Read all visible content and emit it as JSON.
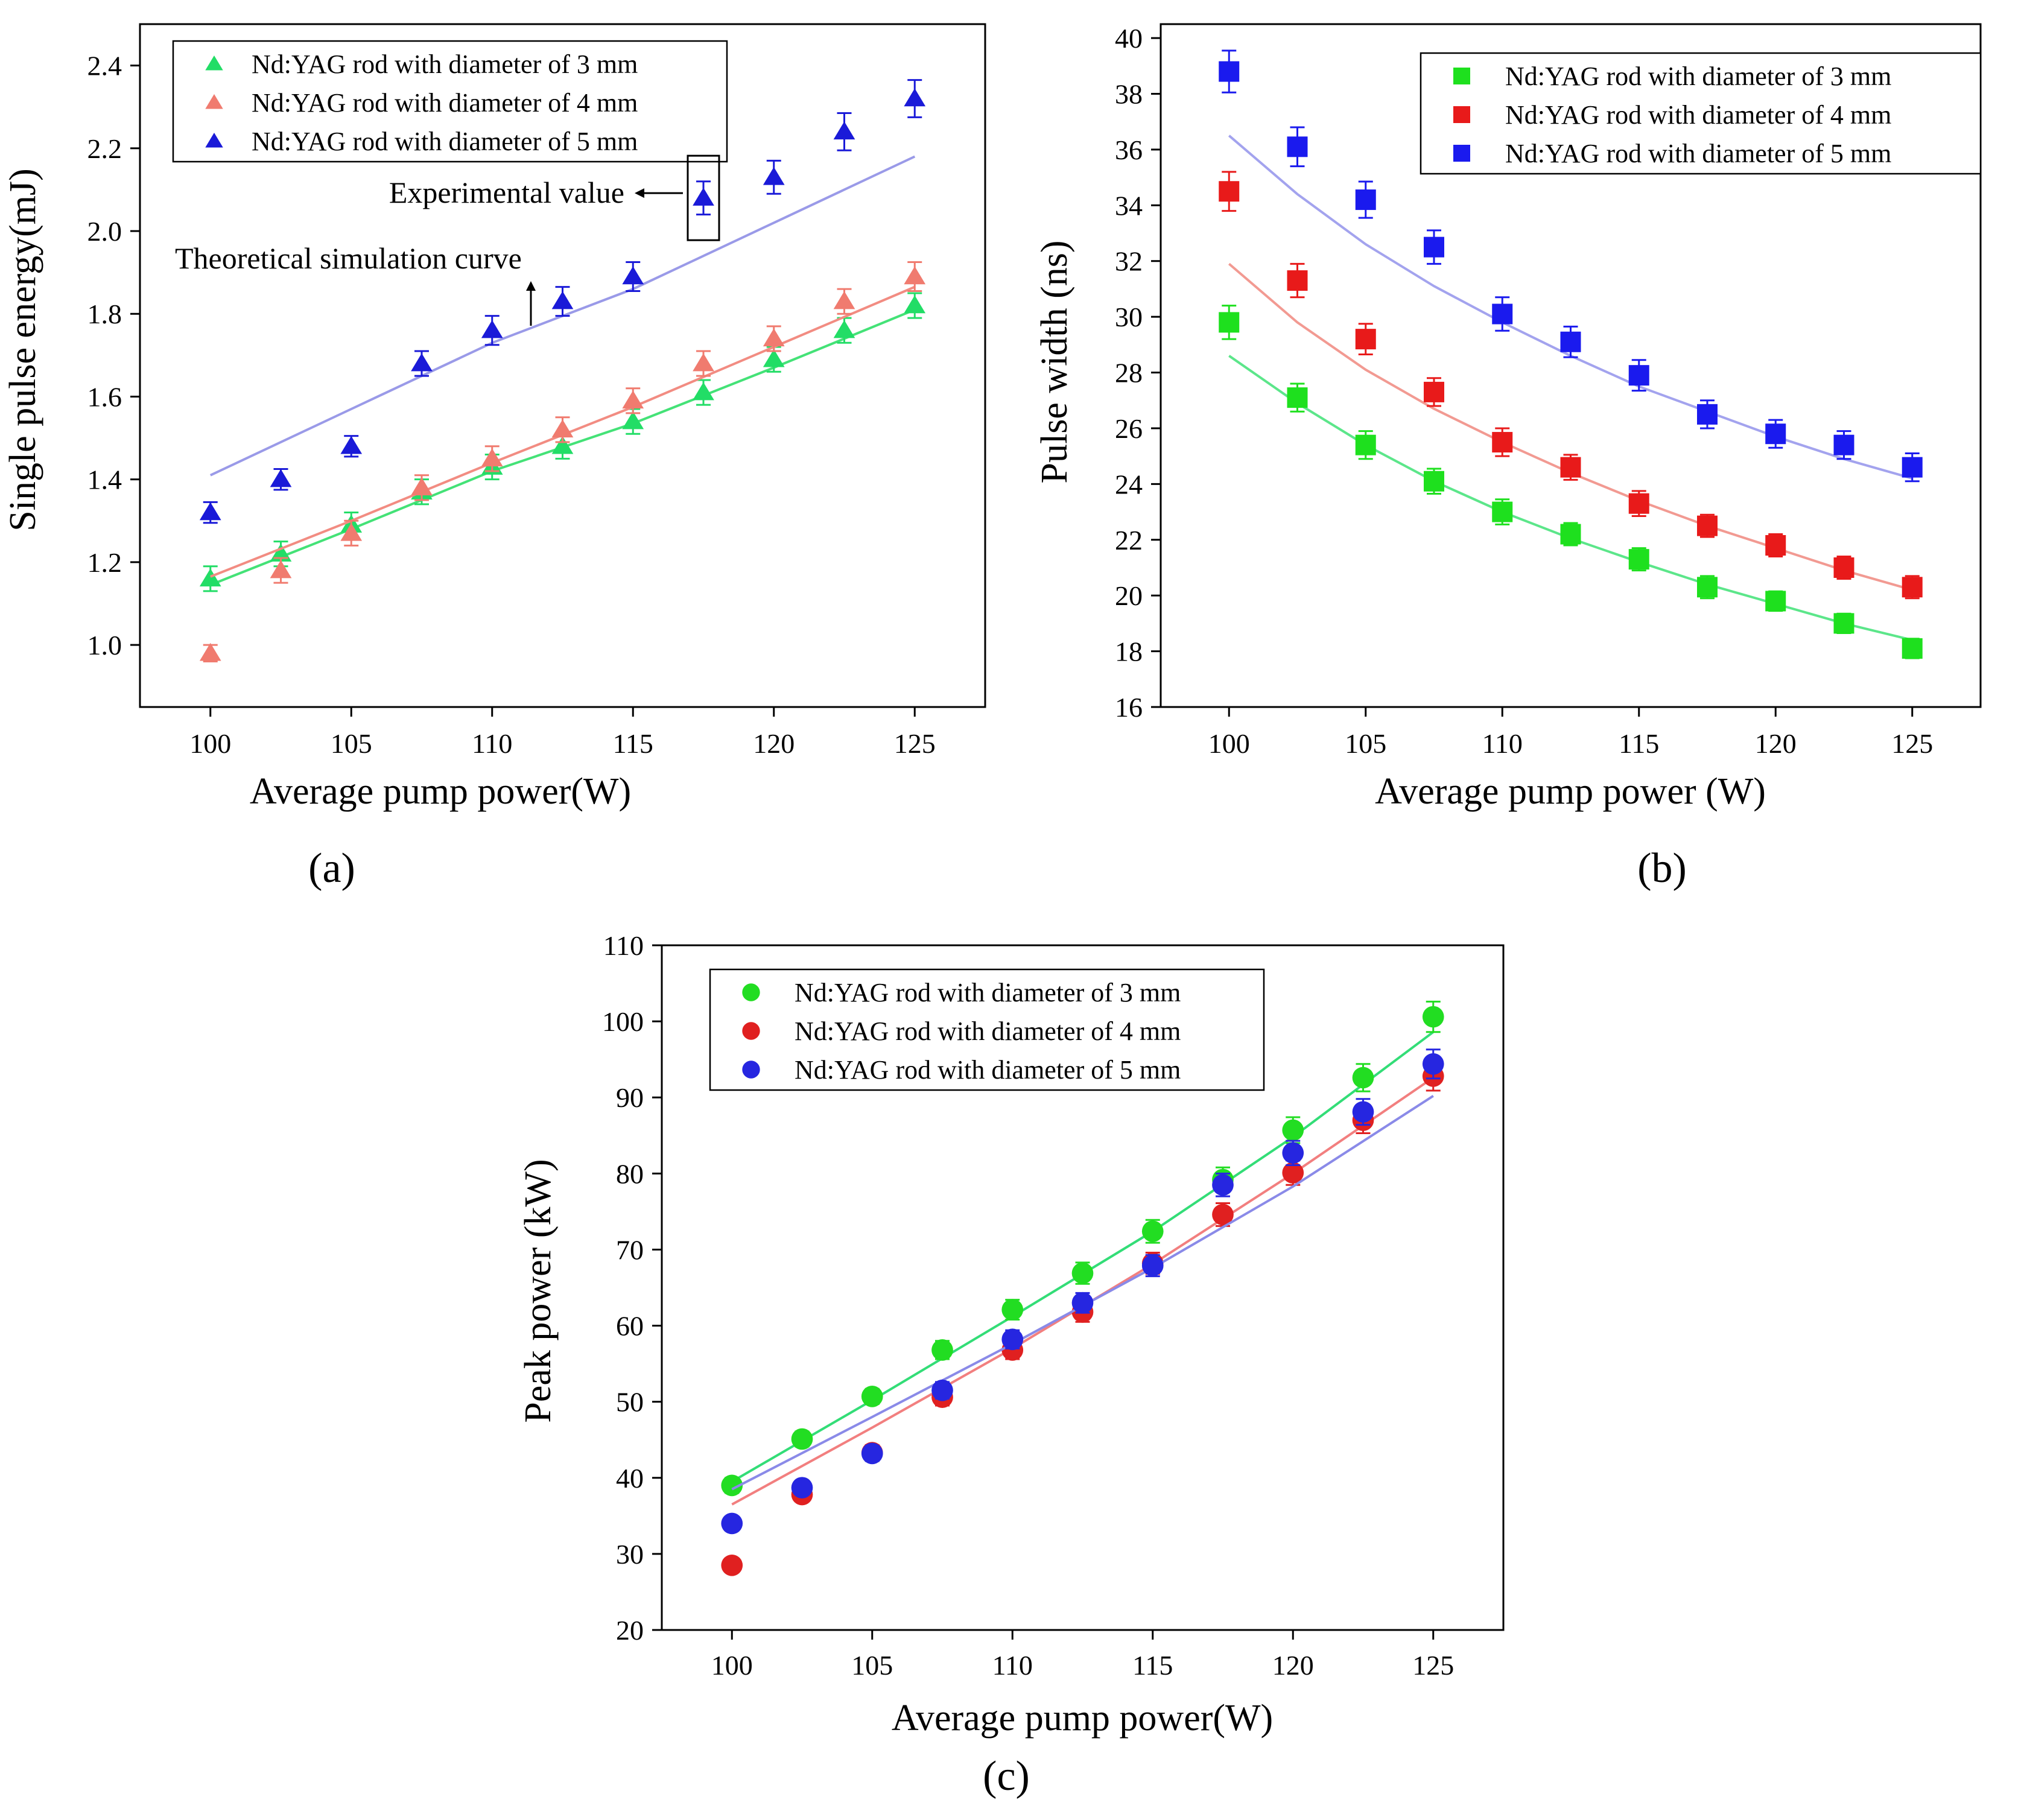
{
  "chart_data": [
    {
      "id": "a",
      "panel_label": "(a)",
      "type": "scatter",
      "marker": "triangle",
      "xlabel": "Average pump power(W)",
      "ylabel": "Single pulse energy(mJ)",
      "xlim": [
        97.5,
        127.5
      ],
      "ylim": [
        0.85,
        2.5
      ],
      "xticks": [
        100,
        105,
        110,
        115,
        120,
        125
      ],
      "yticks": [
        1.0,
        1.2,
        1.4,
        1.6,
        1.8,
        2.0,
        2.2,
        2.4
      ],
      "y_decimals": 1,
      "legend_position": "top-left",
      "annotations": {
        "experimental": "Experimental value",
        "theoretical": "Theoretical simulation curve"
      },
      "series": [
        {
          "name": "Nd:YAG rod with diameter of 3 mm",
          "color": "#22dd66",
          "line_color": "#44e277",
          "x": [
            100,
            102.5,
            105,
            107.5,
            110,
            112.5,
            115,
            117.5,
            120,
            122.5,
            125
          ],
          "y": [
            1.16,
            1.22,
            1.29,
            1.37,
            1.43,
            1.48,
            1.54,
            1.61,
            1.69,
            1.76,
            1.82
          ],
          "err": [
            0.03,
            0.03,
            0.03,
            0.03,
            0.03,
            0.03,
            0.03,
            0.03,
            0.03,
            0.03,
            0.03
          ],
          "curve_x": [
            100,
            105,
            110,
            115,
            120,
            125
          ],
          "curve_y": [
            1.145,
            1.28,
            1.42,
            1.535,
            1.67,
            1.81
          ]
        },
        {
          "name": "Nd:YAG rod with diameter of 4 mm",
          "color": "#f07b6f",
          "line_color": "#f28c82",
          "x": [
            100,
            102.5,
            105,
            107.5,
            110,
            112.5,
            115,
            117.5,
            120,
            122.5,
            125
          ],
          "y": [
            0.98,
            1.18,
            1.27,
            1.38,
            1.45,
            1.52,
            1.59,
            1.68,
            1.74,
            1.83,
            1.89
          ],
          "err": [
            0.02,
            0.03,
            0.03,
            0.03,
            0.03,
            0.03,
            0.03,
            0.03,
            0.03,
            0.03,
            0.035
          ],
          "curve_x": [
            100,
            105,
            110,
            115,
            120,
            125
          ],
          "curve_y": [
            1.165,
            1.3,
            1.44,
            1.575,
            1.72,
            1.865
          ]
        },
        {
          "name": "Nd:YAG rod with diameter of 5 mm",
          "color": "#1a1ad8",
          "line_color": "#9a9ae8",
          "x": [
            100,
            102.5,
            105,
            107.5,
            110,
            112.5,
            115,
            117.5,
            120,
            122.5,
            125
          ],
          "y": [
            1.32,
            1.4,
            1.48,
            1.68,
            1.76,
            1.83,
            1.89,
            2.08,
            2.13,
            2.24,
            2.32
          ],
          "err": [
            0.025,
            0.025,
            0.025,
            0.03,
            0.035,
            0.035,
            0.035,
            0.04,
            0.04,
            0.045,
            0.045
          ],
          "curve_x": [
            100,
            105,
            110,
            115,
            120,
            125
          ],
          "curve_y": [
            1.41,
            1.57,
            1.73,
            1.86,
            2.02,
            2.18
          ]
        }
      ]
    },
    {
      "id": "b",
      "panel_label": "(b)",
      "type": "scatter",
      "marker": "square",
      "xlabel": "Average pump power (W)",
      "ylabel": "Pulse width (ns)",
      "xlim": [
        97.5,
        127.5
      ],
      "ylim": [
        16,
        40.5
      ],
      "xticks": [
        100,
        105,
        110,
        115,
        120,
        125
      ],
      "yticks": [
        16,
        18,
        20,
        22,
        24,
        26,
        28,
        30,
        32,
        34,
        36,
        38,
        40
      ],
      "y_decimals": 0,
      "legend_position": "top-right",
      "series": [
        {
          "name": "Nd:YAG rod with diameter of 3 mm",
          "color": "#1ee01e",
          "line_color": "#5ce68a",
          "x": [
            100,
            102.5,
            105,
            107.5,
            110,
            112.5,
            115,
            117.5,
            120,
            122.5,
            125
          ],
          "y": [
            29.8,
            27.1,
            25.4,
            24.1,
            23.0,
            22.2,
            21.3,
            20.3,
            19.8,
            19.0,
            18.1
          ],
          "err": [
            0.6,
            0.5,
            0.5,
            0.45,
            0.45,
            0.4,
            0.4,
            0.4,
            0.35,
            0.35,
            0.35
          ],
          "curve_x": [
            100,
            102.5,
            105,
            107.5,
            110,
            112.5,
            115,
            117.5,
            120,
            122.5,
            125
          ],
          "curve_y": [
            28.6,
            26.9,
            25.4,
            24.1,
            23.0,
            22.05,
            21.2,
            20.4,
            19.7,
            19.0,
            18.4
          ]
        },
        {
          "name": "Nd:YAG rod with diameter of 4 mm",
          "color": "#e81a1a",
          "line_color": "#f29a92",
          "x": [
            100,
            102.5,
            105,
            107.5,
            110,
            112.5,
            115,
            117.5,
            120,
            122.5,
            125
          ],
          "y": [
            34.5,
            31.3,
            29.2,
            27.3,
            25.5,
            24.6,
            23.3,
            22.5,
            21.8,
            21.0,
            20.3
          ],
          "err": [
            0.7,
            0.6,
            0.55,
            0.5,
            0.5,
            0.45,
            0.45,
            0.4,
            0.4,
            0.4,
            0.4
          ],
          "curve_x": [
            100,
            102.5,
            105,
            107.5,
            110,
            112.5,
            115,
            117.5,
            120,
            122.5,
            125
          ],
          "curve_y": [
            31.9,
            29.8,
            28.1,
            26.7,
            25.5,
            24.4,
            23.4,
            22.5,
            21.7,
            20.9,
            20.2
          ]
        },
        {
          "name": "Nd:YAG rod with diameter of 5 mm",
          "color": "#1a1aee",
          "line_color": "#a3a3ee",
          "x": [
            100,
            102.5,
            105,
            107.5,
            110,
            112.5,
            115,
            117.5,
            120,
            122.5,
            125
          ],
          "y": [
            38.8,
            36.1,
            34.2,
            32.5,
            30.1,
            29.1,
            27.9,
            26.5,
            25.8,
            25.4,
            24.6
          ],
          "err": [
            0.75,
            0.7,
            0.65,
            0.6,
            0.6,
            0.55,
            0.55,
            0.5,
            0.5,
            0.5,
            0.5
          ],
          "curve_x": [
            100,
            102.5,
            105,
            107.5,
            110,
            112.5,
            115,
            117.5,
            120,
            122.5,
            125
          ],
          "curve_y": [
            36.5,
            34.4,
            32.6,
            31.1,
            29.8,
            28.6,
            27.5,
            26.6,
            25.7,
            24.9,
            24.2
          ]
        }
      ]
    },
    {
      "id": "c",
      "panel_label": "(c)",
      "type": "scatter",
      "marker": "circle",
      "xlabel": "Average pump power(W)",
      "ylabel": "Peak power  (kW)",
      "xlim": [
        97.5,
        127.5
      ],
      "ylim": [
        20,
        110
      ],
      "xticks": [
        100,
        105,
        110,
        115,
        120,
        125
      ],
      "yticks": [
        20,
        30,
        40,
        50,
        60,
        70,
        80,
        90,
        100,
        110
      ],
      "y_decimals": 0,
      "legend_position": "top-left",
      "series": [
        {
          "name": "Nd:YAG rod with diameter of 3 mm",
          "color": "#22dd22",
          "line_color": "#33dd77",
          "x": [
            100,
            102.5,
            105,
            107.5,
            110,
            112.5,
            115,
            117.5,
            120,
            122.5,
            125
          ],
          "y": [
            39.0,
            45.1,
            50.7,
            56.8,
            62.1,
            66.9,
            72.4,
            79.2,
            85.7,
            92.6,
            100.6
          ],
          "err": [
            1.0,
            1.0,
            1.0,
            1.2,
            1.3,
            1.4,
            1.5,
            1.6,
            1.7,
            1.8,
            2.0
          ],
          "curve_x": [
            100,
            105,
            110,
            115,
            120,
            125
          ],
          "curve_y": [
            39.5,
            50.2,
            61.2,
            72.4,
            84.8,
            98.6
          ]
        },
        {
          "name": "Nd:YAG rod with diameter of 4 mm",
          "color": "#e02020",
          "line_color": "#f27f7f",
          "x": [
            100,
            102.5,
            105,
            107.5,
            110,
            112.5,
            115,
            117.5,
            120,
            122.5,
            125
          ],
          "y": [
            28.5,
            37.8,
            43.3,
            50.6,
            56.8,
            61.8,
            68.2,
            74.6,
            80.1,
            87.0,
            92.8
          ],
          "err": [
            0.8,
            0.9,
            1.0,
            1.1,
            1.2,
            1.3,
            1.4,
            1.5,
            1.6,
            1.7,
            1.9
          ],
          "curve_x": [
            100,
            105,
            110,
            115,
            120,
            125
          ],
          "curve_y": [
            36.5,
            46.6,
            57.0,
            68.1,
            80.0,
            92.6
          ]
        },
        {
          "name": "Nd:YAG rod with diameter of 5 mm",
          "color": "#2626e0",
          "line_color": "#8a8ae8",
          "x": [
            100,
            102.5,
            105,
            107.5,
            110,
            112.5,
            115,
            117.5,
            120,
            122.5,
            125
          ],
          "y": [
            34.0,
            38.7,
            43.2,
            51.5,
            58.2,
            63.0,
            67.9,
            78.5,
            82.7,
            88.1,
            94.4
          ],
          "err": [
            0.8,
            0.9,
            1.0,
            1.1,
            1.2,
            1.3,
            1.4,
            1.5,
            1.6,
            1.7,
            1.9
          ],
          "curve_x": [
            100,
            105,
            110,
            115,
            120,
            125
          ],
          "curve_y": [
            38.5,
            48.0,
            57.6,
            67.6,
            78.3,
            90.2
          ]
        }
      ]
    }
  ]
}
